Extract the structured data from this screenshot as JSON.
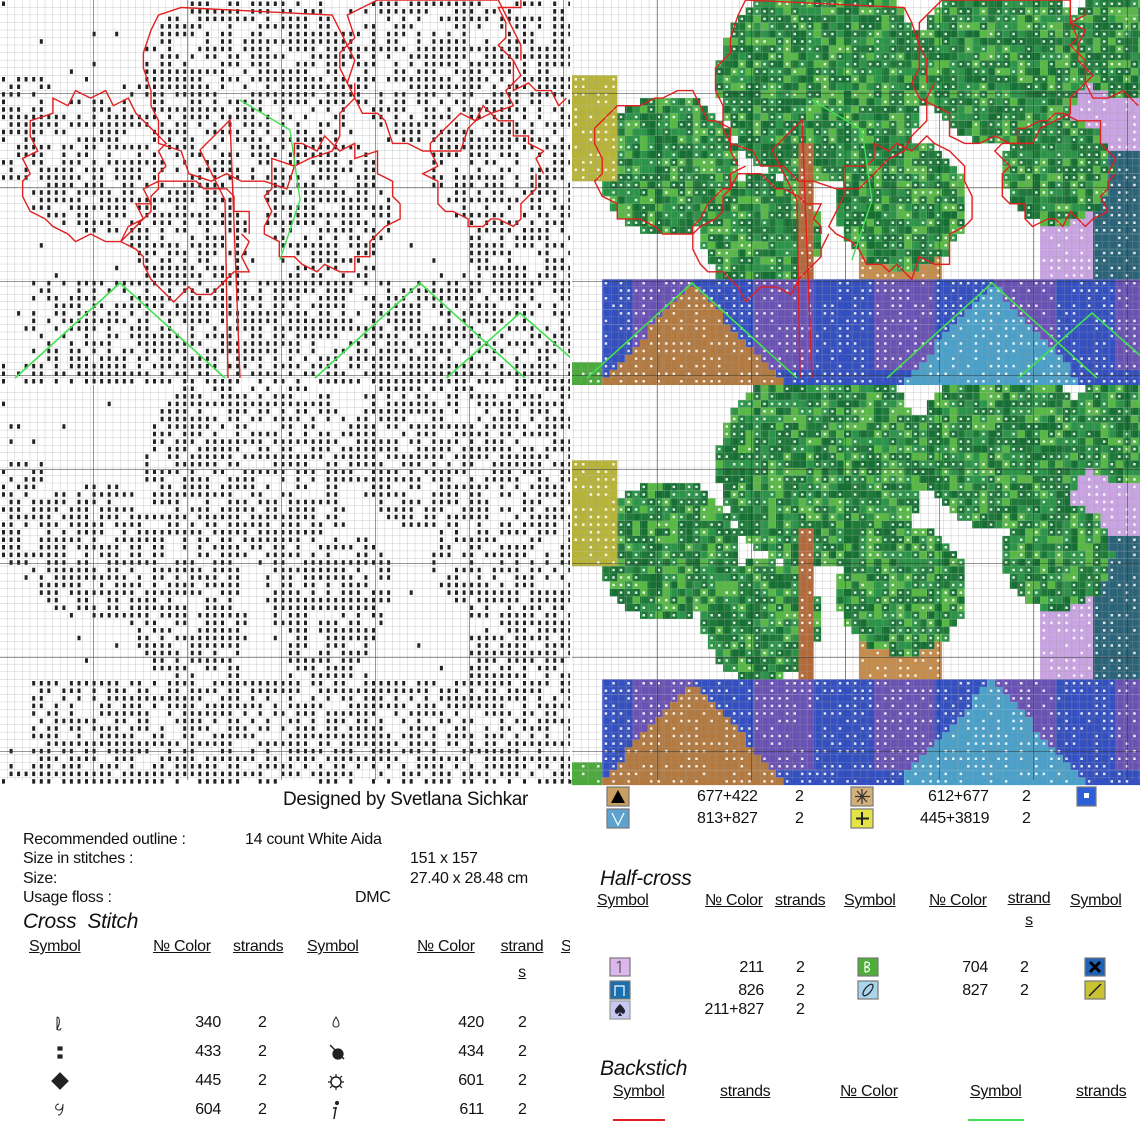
{
  "designer": "Designed by Svetlana Sichkar",
  "details": [
    [
      "Recommended outline :",
      "14 count White Aida"
    ],
    [
      "Size in stitches :",
      "151 x 157"
    ],
    [
      "Size:",
      "27.40 x 28.48 cm"
    ],
    [
      "Usage floss :",
      "DMC"
    ]
  ],
  "cross_stitch": {
    "title": "Cross  Stitch",
    "headers": [
      "Symbol",
      "№ Color",
      "strands",
      "Symbol",
      "№ Color",
      "strands",
      "Symbol"
    ],
    "rows": [
      [
        "340",
        "2",
        "420",
        "2"
      ],
      [
        "433",
        "2",
        "434",
        "2"
      ],
      [
        "445",
        "2",
        "601",
        "2"
      ],
      [
        "604",
        "2",
        "611",
        "2"
      ]
    ]
  },
  "top_legend": [
    [
      "677+422",
      "2",
      "612+677",
      "2"
    ],
    [
      "813+827",
      "2",
      "445+3819",
      "2"
    ]
  ],
  "half_cross": {
    "title": "Half-cross",
    "headers": [
      "Symbol",
      "№ Color",
      "strands",
      "Symbol",
      "№ Color",
      "strands",
      "Symbol"
    ],
    "rows": [
      [
        "211",
        "2",
        "704",
        "2"
      ],
      [
        "826",
        "2",
        "827",
        "2"
      ],
      [
        "211+827",
        "2"
      ]
    ]
  },
  "backstitch": {
    "title": "Backstich",
    "headers": [
      "Symbol",
      "strands",
      "№ Color",
      "Symbol",
      "strands"
    ]
  }
}
